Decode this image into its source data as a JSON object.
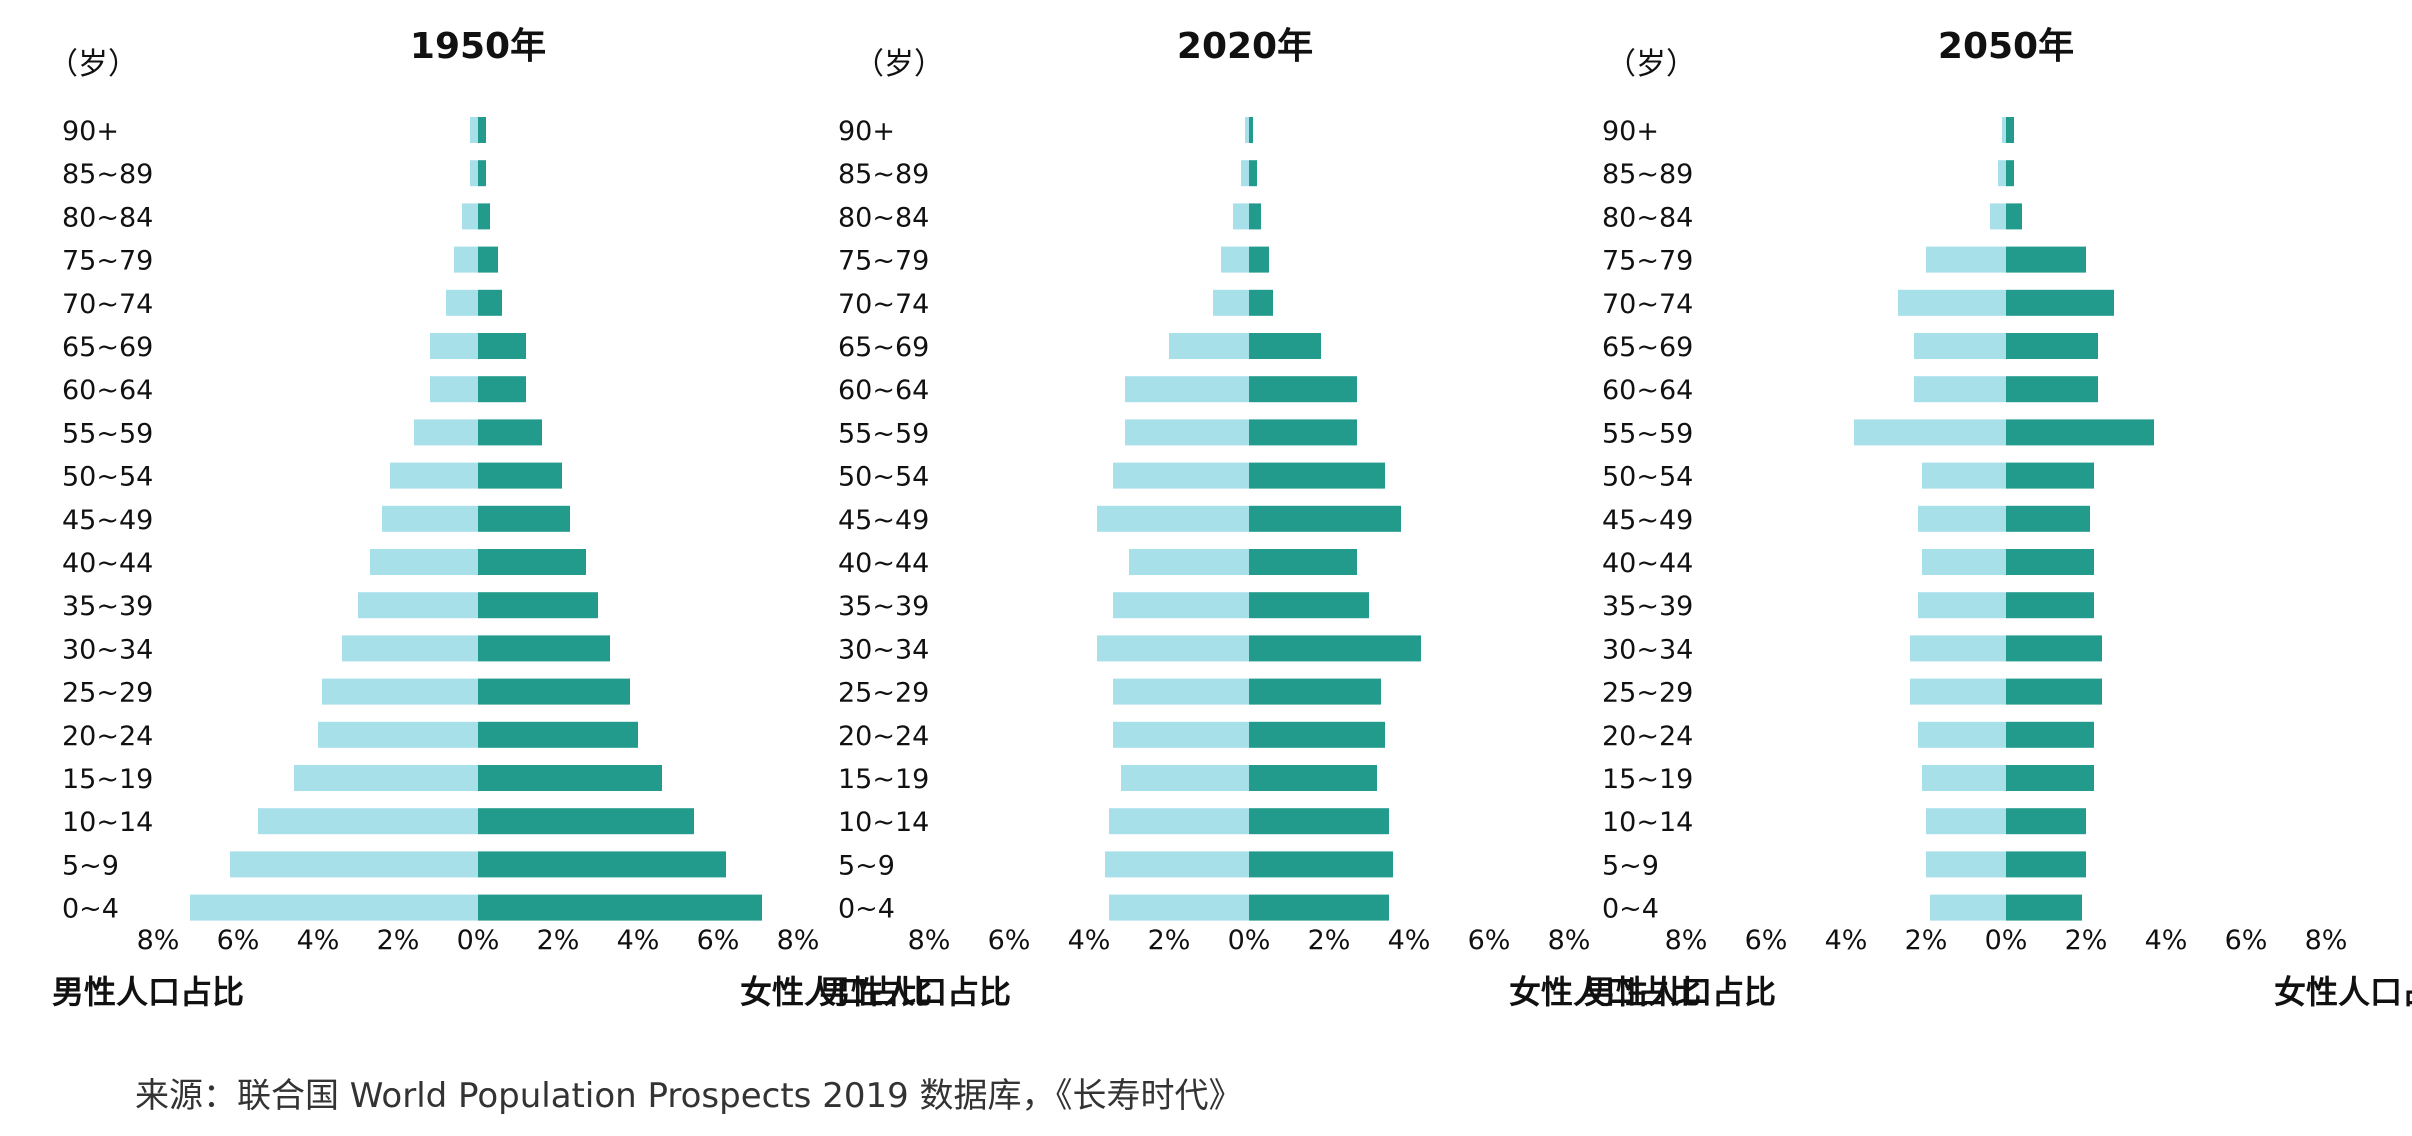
{
  "colors": {
    "male": "#a8e0ea",
    "female": "#229a8c",
    "text": "#111111",
    "source": "#333333"
  },
  "footer": {
    "source": "来源：联合国 World Population Prospects 2019 数据库，《长寿时代》"
  },
  "chart_data": [
    {
      "type": "bar",
      "subtype": "population-pyramid",
      "title": "1950年",
      "unit_label": "（岁）",
      "categories": [
        "90+",
        "85~89",
        "80~84",
        "75~79",
        "70~74",
        "65~69",
        "60~64",
        "55~59",
        "50~54",
        "45~49",
        "40~44",
        "35~39",
        "30~34",
        "25~29",
        "20~24",
        "15~19",
        "10~14",
        "5~9",
        "0~4"
      ],
      "x_ticks": [
        "8%",
        "6%",
        "4%",
        "2%",
        "0%",
        "2%",
        "4%",
        "6%",
        "8%"
      ],
      "xlim": [
        -8,
        8
      ],
      "xlabel_left": "男性人口占比",
      "xlabel_right": "女性人口占比",
      "series": [
        {
          "name": "男性人口占比",
          "side": "left",
          "values": [
            0.2,
            0.2,
            0.4,
            0.6,
            0.8,
            1.2,
            1.2,
            1.6,
            2.2,
            2.4,
            2.7,
            3.0,
            3.4,
            3.9,
            4.0,
            4.6,
            5.5,
            6.2,
            7.2
          ]
        },
        {
          "name": "女性人口占比",
          "side": "right",
          "values": [
            0.2,
            0.2,
            0.3,
            0.5,
            0.6,
            1.2,
            1.2,
            1.6,
            2.1,
            2.3,
            2.7,
            3.0,
            3.3,
            3.8,
            4.0,
            4.6,
            5.4,
            6.2,
            7.1
          ]
        }
      ]
    },
    {
      "type": "bar",
      "subtype": "population-pyramid",
      "title": "2020年",
      "unit_label": "（岁）",
      "categories": [
        "90+",
        "85~89",
        "80~84",
        "75~79",
        "70~74",
        "65~69",
        "60~64",
        "55~59",
        "50~54",
        "45~49",
        "40~44",
        "35~39",
        "30~34",
        "25~29",
        "20~24",
        "15~19",
        "10~14",
        "5~9",
        "0~4"
      ],
      "x_ticks": [
        "8%",
        "6%",
        "4%",
        "2%",
        "0%",
        "2%",
        "4%",
        "6%",
        "8%"
      ],
      "xlim": [
        -8,
        8
      ],
      "xlabel_left": "男性人口占比",
      "xlabel_right": "女性人口占比",
      "series": [
        {
          "name": "男性人口占比",
          "side": "left",
          "values": [
            0.1,
            0.2,
            0.4,
            0.7,
            0.9,
            2.0,
            3.1,
            3.1,
            3.4,
            3.8,
            3.0,
            3.4,
            3.8,
            3.4,
            3.4,
            3.2,
            3.5,
            3.6,
            3.5
          ]
        },
        {
          "name": "女性人口占比",
          "side": "right",
          "values": [
            0.1,
            0.2,
            0.3,
            0.5,
            0.6,
            1.8,
            2.7,
            2.7,
            3.4,
            3.8,
            2.7,
            3.0,
            4.3,
            3.3,
            3.4,
            3.2,
            3.5,
            3.6,
            3.5
          ]
        }
      ]
    },
    {
      "type": "bar",
      "subtype": "population-pyramid",
      "title": "2050年",
      "unit_label": "（岁）",
      "categories": [
        "90+",
        "85~89",
        "80~84",
        "75~79",
        "70~74",
        "65~69",
        "60~64",
        "55~59",
        "50~54",
        "45~49",
        "40~44",
        "35~39",
        "30~34",
        "25~29",
        "20~24",
        "15~19",
        "10~14",
        "5~9",
        "0~4"
      ],
      "x_ticks": [
        "8%",
        "6%",
        "4%",
        "2%",
        "0%",
        "2%",
        "4%",
        "6%",
        "8%"
      ],
      "xlim": [
        -8,
        8
      ],
      "xlabel_left": "男性人口占比",
      "xlabel_right": "女性人口占比",
      "series": [
        {
          "name": "男性人口占比",
          "side": "left",
          "values": [
            0.1,
            0.2,
            0.4,
            2.0,
            2.7,
            2.3,
            2.3,
            3.8,
            2.1,
            2.2,
            2.1,
            2.2,
            2.4,
            2.4,
            2.2,
            2.1,
            2.0,
            2.0,
            1.9
          ]
        },
        {
          "name": "女性人口占比",
          "side": "right",
          "values": [
            0.2,
            0.2,
            0.4,
            2.0,
            2.7,
            2.3,
            2.3,
            3.7,
            2.2,
            2.1,
            2.2,
            2.2,
            2.4,
            2.4,
            2.2,
            2.2,
            2.0,
            2.0,
            1.9
          ]
        }
      ]
    }
  ]
}
